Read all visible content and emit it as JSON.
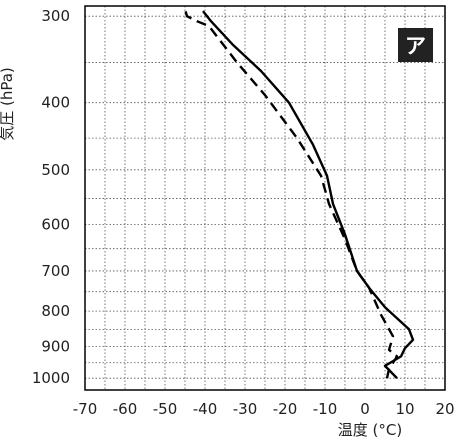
{
  "chart_data": {
    "type": "line",
    "panel_label": "ア",
    "xlabel": "温度 (°C)",
    "ylabel": "気圧 (hPa)",
    "xlim": [
      -70,
      20
    ],
    "ylim": [
      1000,
      300
    ],
    "y_scale": "log",
    "grid": true,
    "x_ticks": [
      "-70",
      "-60",
      "-50",
      "-40",
      "-30",
      "-20",
      "-10",
      "0",
      "10",
      "20"
    ],
    "y_ticks": [
      "300",
      "400",
      "500",
      "600",
      "700",
      "800",
      "900",
      "1000"
    ],
    "series": [
      {
        "style": "solid",
        "color": "#000000",
        "x": [
          8.0,
          5.0,
          9.0,
          10.0,
          12.0,
          11.0,
          5.0,
          1.0,
          -2.0,
          -5.0,
          -8.0,
          -9.5,
          -13.0,
          -19.0,
          -26.0,
          -33.0,
          -38.5,
          -40.5
        ],
        "y": [
          1000,
          960,
          930,
          905,
          880,
          850,
          790,
          740,
          700,
          620,
          560,
          510,
          460,
          400,
          360,
          330,
          305,
          295
        ]
      },
      {
        "style": "dashed",
        "color": "#000000",
        "x": [
          5.5,
          6.0,
          7.5,
          8.0,
          6.0,
          6.5,
          7.0,
          4.0,
          1.0,
          -2.0,
          -5.0,
          -9.0,
          -11.0,
          -17.0,
          -25.0,
          -32.0,
          -39.0,
          -42.0,
          -44.5,
          -45.0
        ],
        "y": [
          1000,
          970,
          940,
          930,
          910,
          890,
          870,
          810,
          740,
          700,
          630,
          560,
          510,
          450,
          390,
          350,
          310,
          305,
          300,
          293
        ]
      }
    ]
  }
}
